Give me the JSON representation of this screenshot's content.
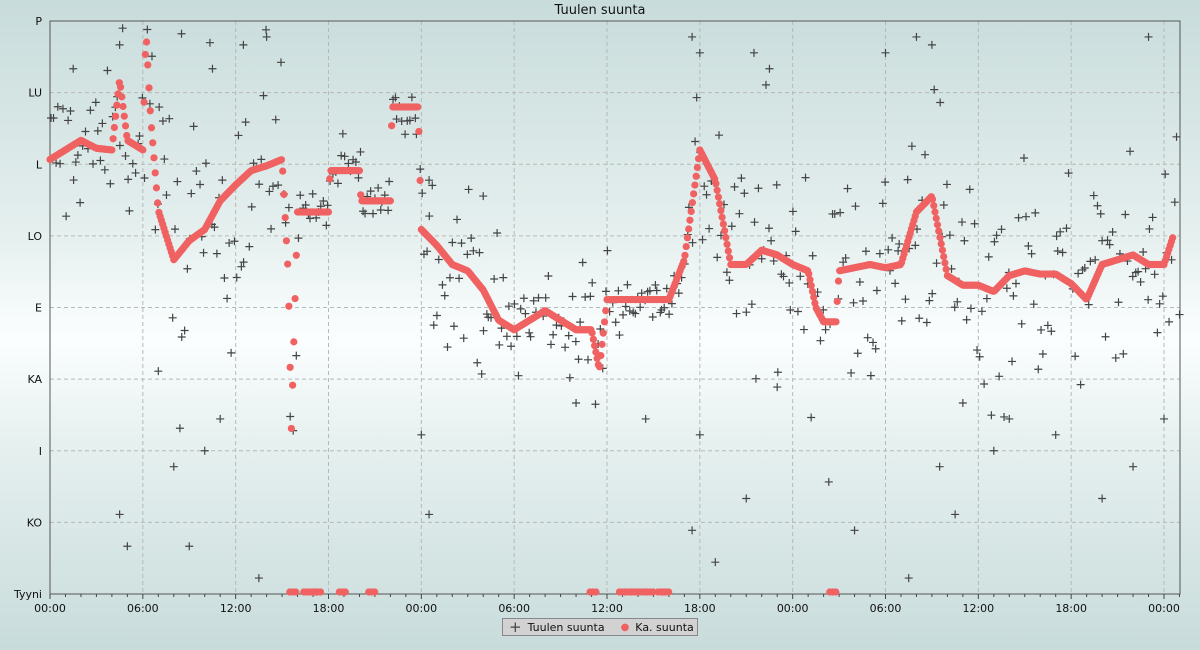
{
  "chart_data": {
    "type": "scatter",
    "title": "Tuulen suunta",
    "xlabel": "",
    "ylabel": "",
    "x_unit": "hours since start",
    "xlim": [
      0,
      73
    ],
    "ylim": [
      0,
      360
    ],
    "grid": true,
    "legend_placement": "bottom-center",
    "y_ticks": [
      {
        "label": "P",
        "value": 360
      },
      {
        "label": "LU",
        "value": 315
      },
      {
        "label": "L",
        "value": 270
      },
      {
        "label": "LO",
        "value": 225
      },
      {
        "label": "E",
        "value": 180
      },
      {
        "label": "KA",
        "value": 135
      },
      {
        "label": "I",
        "value": 90
      },
      {
        "label": "KO",
        "value": 45
      },
      {
        "label": "Tyyni",
        "value": 0
      }
    ],
    "x_ticks": [
      {
        "label": "00:00",
        "value": 0
      },
      {
        "label": "06:00",
        "value": 6
      },
      {
        "label": "12:00",
        "value": 12
      },
      {
        "label": "18:00",
        "value": 18
      },
      {
        "label": "00:00",
        "value": 24
      },
      {
        "label": "06:00",
        "value": 30
      },
      {
        "label": "12:00",
        "value": 36
      },
      {
        "label": "18:00",
        "value": 42
      },
      {
        "label": "00:00",
        "value": 48
      },
      {
        "label": "06:00",
        "value": 54
      },
      {
        "label": "12:00",
        "value": 60
      },
      {
        "label": "18:00",
        "value": 66
      },
      {
        "label": "00:00",
        "value": 72
      }
    ],
    "series": [
      {
        "name": "Tuulen suunta",
        "marker": "cross",
        "color": "#444444",
        "note": "raw observations scattered around average with per-hour spread (deg)",
        "spread_deg": [
          25,
          25,
          22,
          22,
          25,
          30,
          30,
          45,
          50,
          50,
          50,
          45,
          45,
          40,
          35,
          35,
          8,
          8,
          10,
          10,
          8,
          8,
          10,
          15,
          25,
          25,
          25,
          25,
          25,
          20,
          20,
          20,
          20,
          20,
          20,
          25,
          10,
          8,
          8,
          8,
          8,
          30,
          45,
          45,
          40,
          40,
          40,
          35,
          35,
          35,
          40,
          45,
          45,
          45,
          45,
          45,
          45,
          45,
          40,
          40,
          40,
          40,
          40,
          40,
          35,
          35,
          35,
          35,
          35,
          30,
          30,
          30,
          30
        ],
        "outliers": [
          [
            1.5,
            330
          ],
          [
            4.5,
            345
          ],
          [
            8.5,
            352
          ],
          [
            10.5,
            330
          ],
          [
            12.5,
            345
          ],
          [
            14,
            350
          ],
          [
            8,
            80
          ],
          [
            9,
            30
          ],
          [
            10,
            90
          ],
          [
            7,
            140
          ],
          [
            11,
            110
          ],
          [
            13.5,
            10
          ],
          [
            4.5,
            50
          ],
          [
            5,
            30
          ],
          [
            24.5,
            260
          ],
          [
            24,
            100
          ],
          [
            24.5,
            50
          ],
          [
            28,
            250
          ],
          [
            34,
            120
          ],
          [
            38.5,
            110
          ],
          [
            41.5,
            350
          ],
          [
            42,
            340
          ],
          [
            42,
            100
          ],
          [
            41.5,
            40
          ],
          [
            43,
            20
          ],
          [
            45,
            60
          ],
          [
            46.5,
            330
          ],
          [
            45.5,
            340
          ],
          [
            47,
            130
          ],
          [
            52,
            40
          ],
          [
            54,
            340
          ],
          [
            55.5,
            10
          ],
          [
            56,
            350
          ],
          [
            57,
            345
          ],
          [
            57.5,
            80
          ],
          [
            58.5,
            50
          ],
          [
            59,
            120
          ],
          [
            61,
            90
          ],
          [
            62,
            110
          ],
          [
            65,
            100
          ],
          [
            68,
            60
          ],
          [
            70,
            80
          ],
          [
            71,
            350
          ],
          [
            72,
            110
          ]
        ]
      },
      {
        "name": "Ka. suunta",
        "marker": "dot",
        "color": "#f06262",
        "hours": [
          0,
          1,
          2,
          3,
          4,
          4.5,
          5,
          6,
          6.2,
          6.5,
          7,
          8,
          9,
          10,
          11,
          12,
          13,
          14,
          15,
          15.4,
          15.6,
          16,
          17,
          18,
          18.1,
          19,
          20,
          20.1,
          21,
          22,
          22.1,
          23,
          23.8,
          24,
          25,
          26,
          27,
          28,
          29,
          30,
          31,
          32,
          33,
          34,
          35,
          35.5,
          36,
          37,
          38,
          39,
          40,
          41,
          42,
          43,
          44,
          45,
          46,
          47,
          48,
          49,
          49.5,
          50,
          50.8,
          51,
          52,
          53,
          54,
          55,
          56,
          57,
          58,
          59,
          60,
          61,
          62,
          63,
          64,
          65,
          66,
          67,
          68,
          69,
          70,
          71,
          72,
          72.6
        ],
        "degrees": [
          273,
          279,
          285,
          280,
          279,
          323,
          285,
          279,
          354,
          300,
          241,
          210,
          222,
          229,
          247,
          257,
          266,
          269,
          273,
          200,
          104,
          240,
          240,
          240,
          266,
          266,
          266,
          247,
          247,
          247,
          306,
          306,
          306,
          229,
          219,
          207,
          203,
          191,
          172,
          166,
          172,
          178,
          172,
          166,
          166,
          141,
          185,
          185,
          185,
          185,
          185,
          210,
          279,
          260,
          207,
          207,
          216,
          213,
          207,
          203,
          180,
          171,
          171,
          203,
          205,
          207,
          205,
          207,
          240,
          250,
          200,
          194,
          194,
          190,
          200,
          203,
          201,
          201,
          195,
          185,
          207,
          210,
          213,
          207,
          207,
          225
        ],
        "calm_hours": [
          15.5,
          16.4,
          16.8,
          17.1,
          18.7,
          20.6,
          34.9,
          36.8,
          37.2,
          37.6,
          38.1,
          38.6,
          39.3,
          39.6,
          50.4
        ]
      }
    ]
  },
  "legend": {
    "raw_label": "Tuulen suunta",
    "avg_label": "Ka. suunta"
  }
}
